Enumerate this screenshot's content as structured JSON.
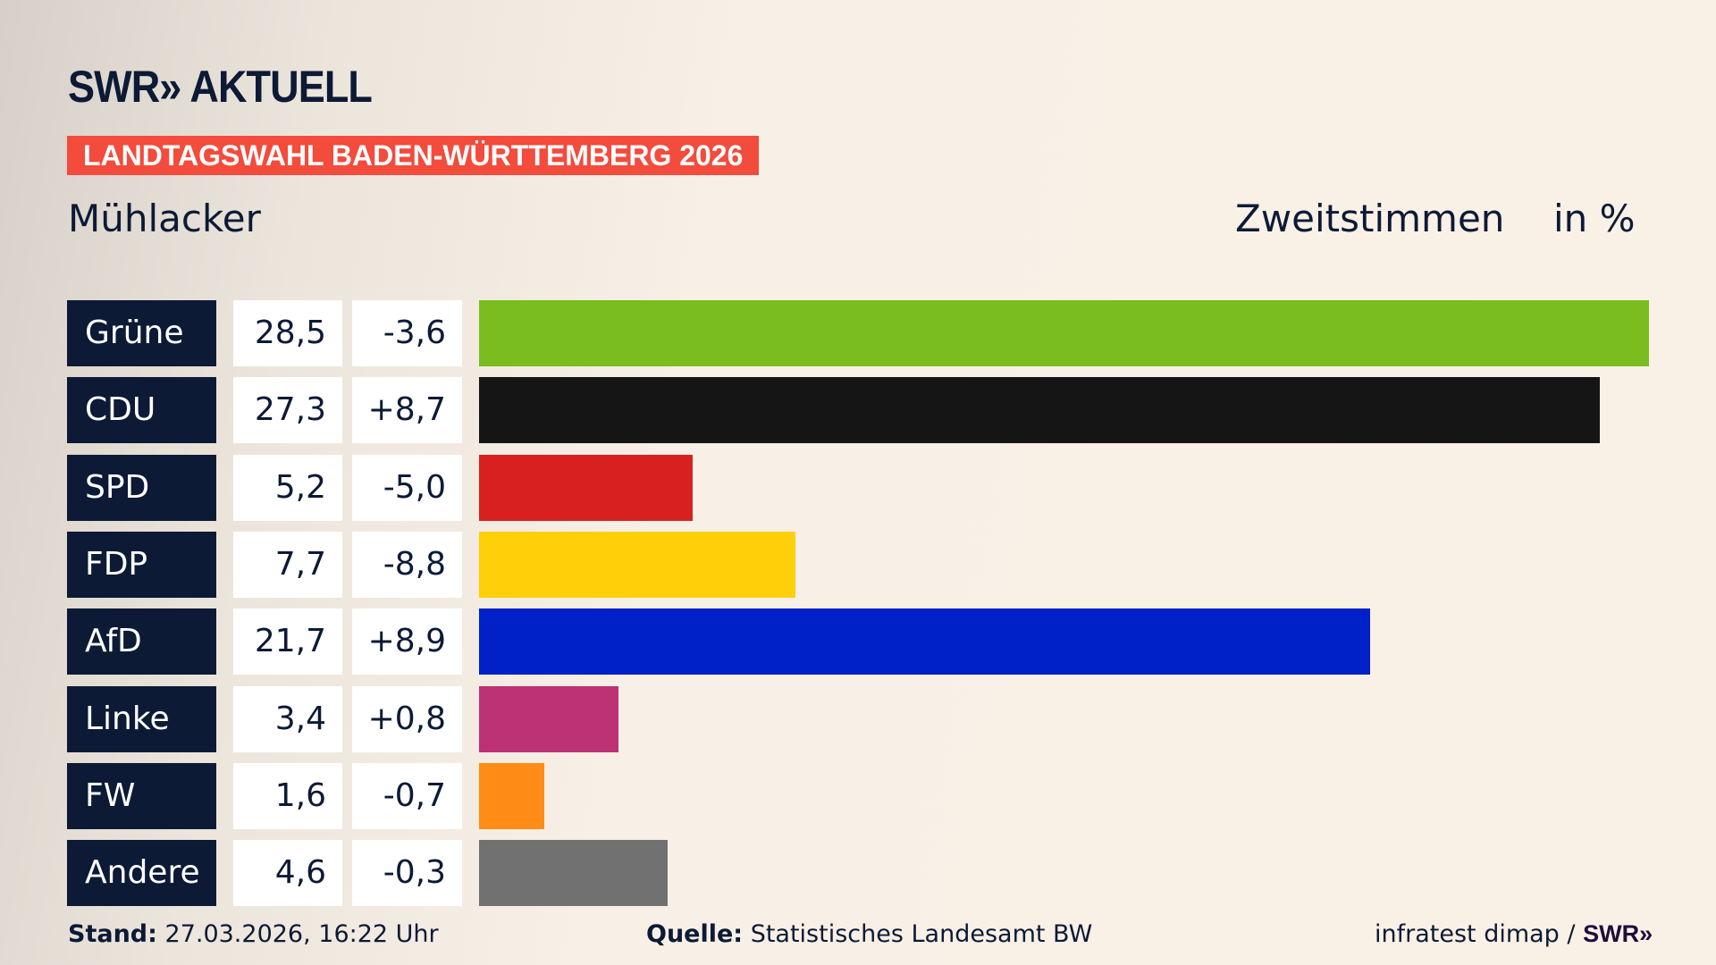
{
  "header": {
    "logo": "SWR» AKTUELL",
    "banner": "LANDTAGSWAHL BADEN-WÜRTTEMBERG 2026",
    "region": "Mühlacker",
    "metric": "Zweitstimmen",
    "unit": "in %"
  },
  "chart_data": {
    "type": "bar",
    "orientation": "horizontal",
    "categories": [
      "Grüne",
      "CDU",
      "SPD",
      "FDP",
      "AfD",
      "Linke",
      "FW",
      "Andere"
    ],
    "values": [
      28.5,
      27.3,
      5.2,
      7.7,
      21.7,
      3.4,
      1.6,
      4.6
    ],
    "value_labels": [
      "28,5",
      "27,3",
      "5,2",
      "7,7",
      "21,7",
      "3,4",
      "1,6",
      "4,6"
    ],
    "diff_labels": [
      "-3,6",
      "+8,7",
      "-5,0",
      "-8,8",
      "+8,9",
      "+0,8",
      "-0,7",
      "-0,3"
    ],
    "colors": [
      "#7abd1e",
      "#151515",
      "#d8201f",
      "#ffcf0a",
      "#0020c8",
      "#bd3175",
      "#ff8c16",
      "#717171"
    ],
    "xlim": [
      0,
      28.5
    ]
  },
  "footer": {
    "stand_label": "Stand:",
    "stand_value": "27.03.2026, 16:22 Uhr",
    "source_label": "Quelle:",
    "source_value": "Statistisches Landesamt BW",
    "credit": "infratest dimap /",
    "credit_logo": "SWR»"
  }
}
